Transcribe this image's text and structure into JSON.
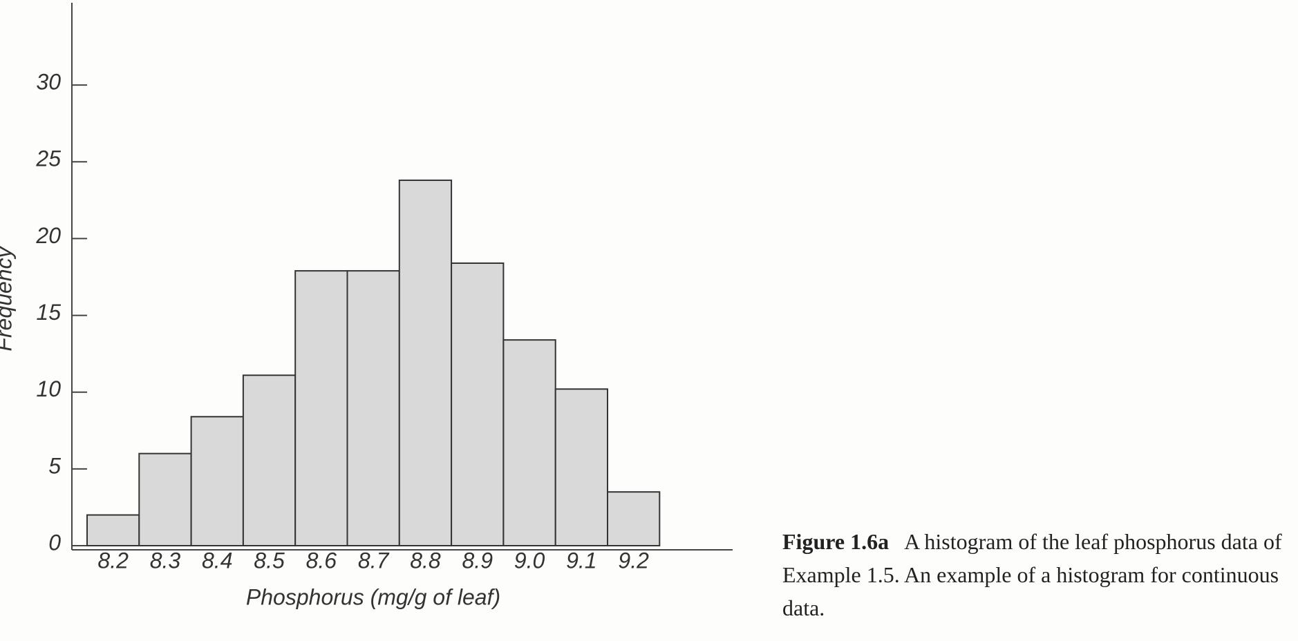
{
  "chart_data": {
    "type": "bar",
    "y_label": "Frequency",
    "x_label": "Phosphorus (mg/g of leaf)",
    "categories": [
      "8.2",
      "8.3",
      "8.4",
      "8.5",
      "8.6",
      "8.7",
      "8.8",
      "8.9",
      "9.0",
      "9.1",
      "9.2"
    ],
    "values": [
      2,
      6,
      8.4,
      11.1,
      17.9,
      17.9,
      23.8,
      18.4,
      13.4,
      10.2,
      3.5
    ],
    "color": "#d9d9d9",
    "ylim": [
      0,
      35
    ],
    "yticks": [
      0,
      5,
      10,
      15,
      20,
      25,
      30
    ]
  },
  "caption": {
    "label": "Figure 1.6a",
    "text": "A histogram of the leaf phosphorus data of Example 1.5. An example of a histogram for continuous data."
  }
}
